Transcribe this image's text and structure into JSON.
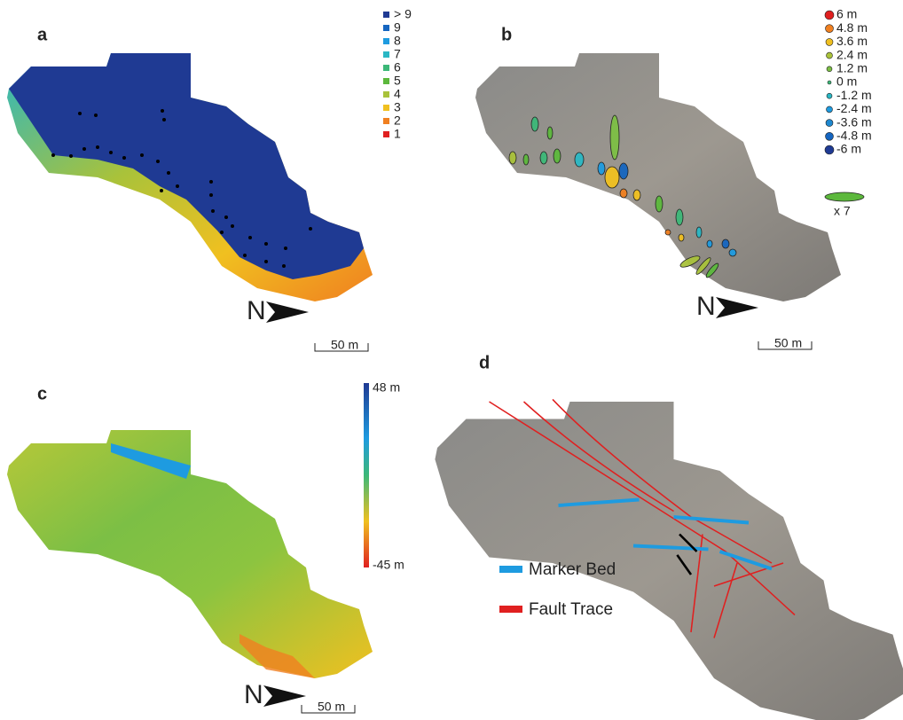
{
  "panels": [
    {
      "label": "a",
      "legend": [
        "> 9",
        "9",
        "8",
        "7",
        "6",
        "5",
        "4",
        "3",
        "2",
        "1"
      ],
      "north": "N",
      "scale": "50 m"
    },
    {
      "label": "b",
      "legend": [
        "6 m",
        "4.8 m",
        "3.6 m",
        "2.4 m",
        "1.2 m",
        "0 m",
        "-1.2 m",
        "-2.4 m",
        "-3.6 m",
        "-4.8 m",
        "-6 m"
      ],
      "size_note": "x 7",
      "north": "N",
      "scale": "50 m"
    },
    {
      "label": "c",
      "colorbar": {
        "max": "48 m",
        "min": "-45 m"
      },
      "north": "N",
      "scale": "50 m"
    },
    {
      "label": "d",
      "legend": [
        "Marker Bed",
        "Fault Trace"
      ]
    }
  ]
}
